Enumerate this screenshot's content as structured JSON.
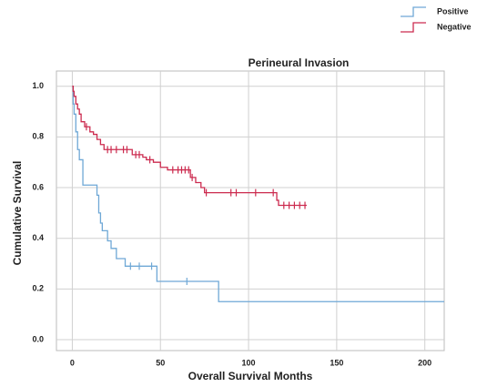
{
  "chart_data": {
    "type": "step",
    "title": "Perineural Invasion",
    "x_label": "Overall Survival Months",
    "y_label": "Cumulative Survival",
    "xlim": [
      -9,
      211
    ],
    "ylim": [
      -0.043,
      1.06
    ],
    "xticks": [
      0,
      50,
      100,
      150,
      200
    ],
    "yticks": [
      {
        "value": 0,
        "label": "0.0"
      },
      0.2,
      0.4,
      0.6,
      0.8,
      {
        "value": 1,
        "label": "1.0"
      }
    ],
    "grid": true,
    "legend": "top-right",
    "series": [
      {
        "name": "Positive",
        "color": "#6fa8d6",
        "x": [
          0,
          0.5,
          1,
          2,
          3,
          4,
          6,
          14,
          15,
          16,
          17,
          20,
          22,
          25,
          30,
          48,
          83,
          211
        ],
        "values": [
          1,
          0.93,
          0.89,
          0.82,
          0.75,
          0.71,
          0.61,
          0.57,
          0.5,
          0.46,
          0.43,
          0.39,
          0.36,
          0.32,
          0.29,
          0.23,
          0.15,
          0.15
        ],
        "censored_x": [
          33,
          38,
          45,
          65
        ],
        "censored_values": [
          0.29,
          0.29,
          0.29,
          0.23
        ]
      },
      {
        "name": "Negative",
        "color": "#cc2b4f",
        "x": [
          0,
          0.5,
          1,
          2,
          3,
          4,
          5,
          7,
          10,
          12,
          14,
          16,
          18,
          34,
          40,
          42,
          46,
          50,
          54,
          67,
          70,
          73,
          75,
          116,
          117,
          133
        ],
        "values": [
          1,
          0.98,
          0.96,
          0.93,
          0.91,
          0.89,
          0.86,
          0.84,
          0.82,
          0.81,
          0.79,
          0.77,
          0.75,
          0.73,
          0.72,
          0.71,
          0.7,
          0.68,
          0.67,
          0.64,
          0.62,
          0.6,
          0.58,
          0.55,
          0.53,
          0.53
        ],
        "censored_x": [
          8,
          20,
          22,
          25,
          29,
          31,
          36,
          38,
          44,
          57,
          60,
          62,
          64,
          66,
          68,
          76,
          90,
          93,
          104,
          114,
          120,
          123,
          126,
          129,
          132
        ],
        "censored_values": [
          0.84,
          0.75,
          0.75,
          0.75,
          0.75,
          0.75,
          0.73,
          0.73,
          0.71,
          0.67,
          0.67,
          0.67,
          0.67,
          0.67,
          0.64,
          0.58,
          0.58,
          0.58,
          0.58,
          0.58,
          0.53,
          0.53,
          0.53,
          0.53,
          0.53
        ]
      }
    ]
  }
}
